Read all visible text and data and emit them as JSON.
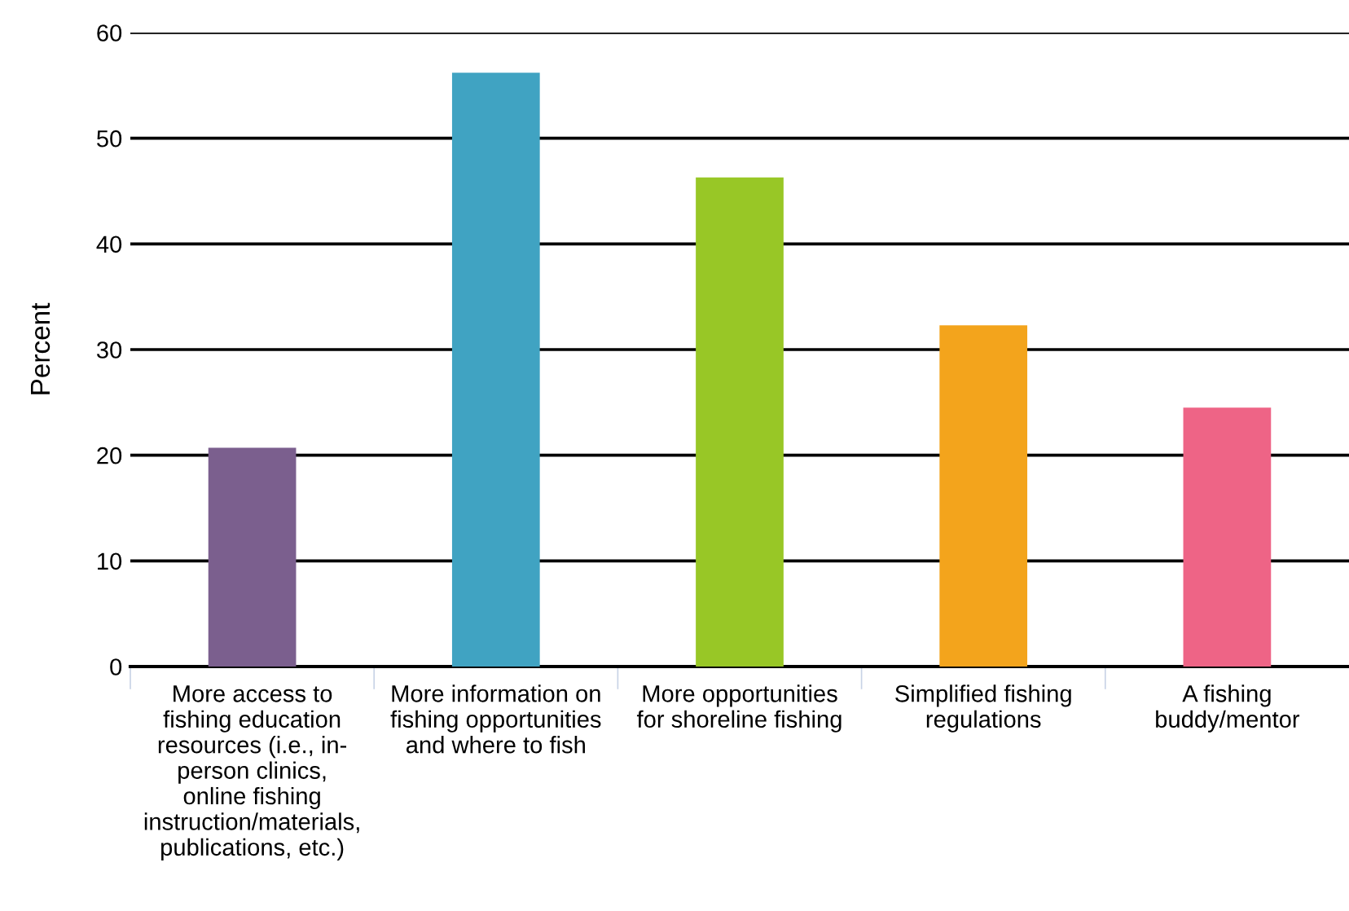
{
  "chart_data": {
    "type": "bar",
    "ylabel": "Percent",
    "categories": [
      "More access to\nfishing education\nresources (i.e., in-\nperson clinics,\nonline fishing\ninstruction/materials,\npublications, etc.)",
      "More information on\nfishing opportunities\nand where to fish",
      "More opportunities\nfor shoreline fishing",
      "Simplified fishing\nregulations",
      "A fishing\nbuddy/mentor"
    ],
    "values": [
      20.7,
      56.2,
      46.3,
      32.3,
      24.5
    ],
    "colors": [
      "#7b5f8e",
      "#40a3c2",
      "#98c726",
      "#f3a41c",
      "#ee6486"
    ],
    "ylim": [
      0,
      60
    ],
    "yticks": [
      0,
      10,
      20,
      30,
      40,
      50,
      60
    ],
    "grid": "y"
  }
}
